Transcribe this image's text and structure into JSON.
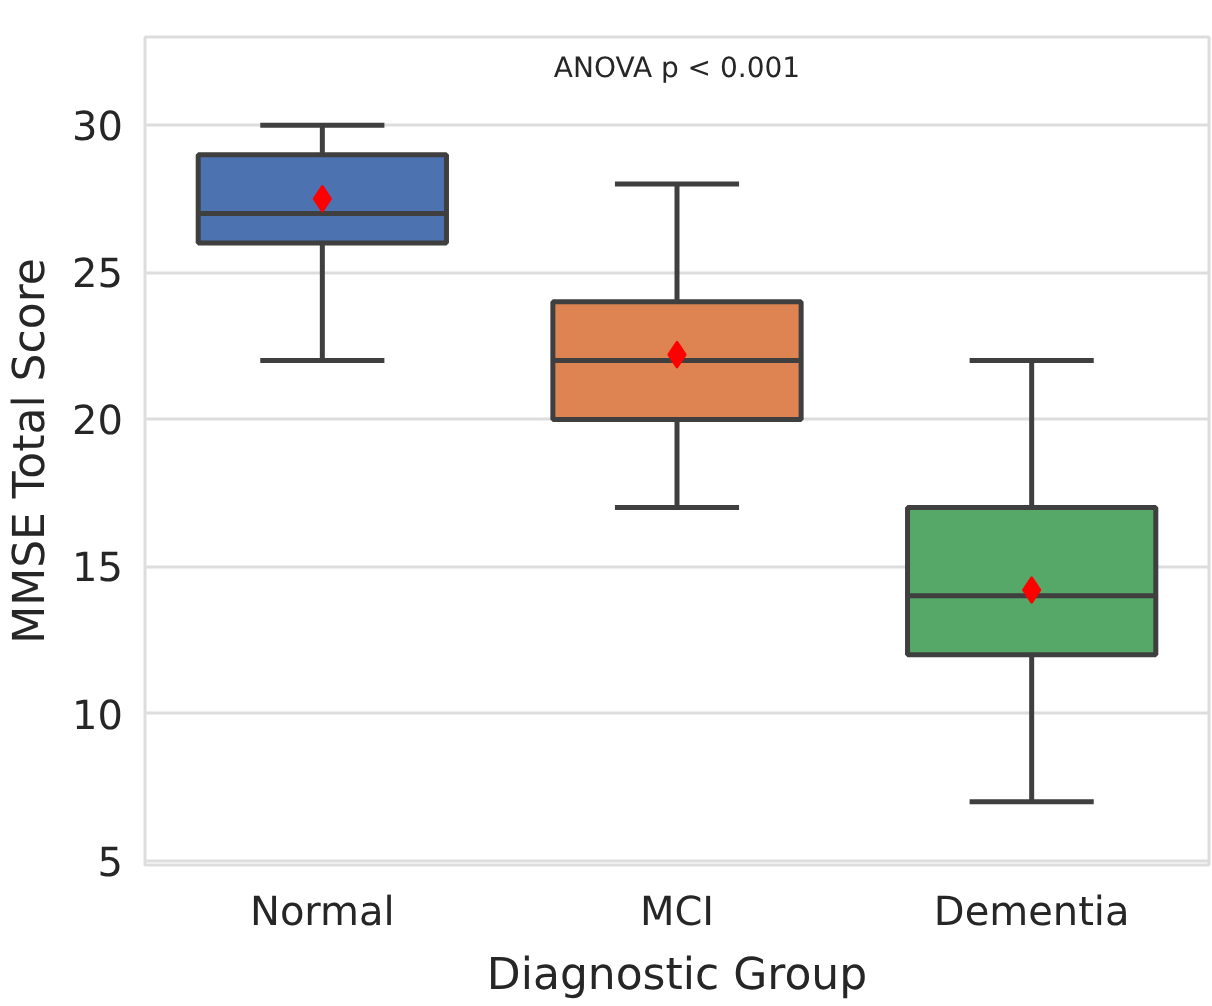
{
  "chart_data": {
    "type": "box",
    "xlabel": "Diagnostic Group",
    "ylabel": "MMSE Total Score",
    "annotations": [
      "ANOVA p < 0.001"
    ],
    "categories": [
      "Normal",
      "MCI",
      "Dementia"
    ],
    "colors": [
      "#4c72b0",
      "#dd8452",
      "#55a868"
    ],
    "boxes": [
      {
        "low": 22,
        "q1": 26,
        "median": 27,
        "q3": 29,
        "high": 30,
        "mean": 27.5
      },
      {
        "low": 17,
        "q1": 20,
        "median": 22,
        "q3": 24,
        "high": 28,
        "mean": 22.2
      },
      {
        "low": 7,
        "q1": 12,
        "median": 14,
        "q3": 17,
        "high": 22,
        "mean": 14.2
      }
    ],
    "ylim": [
      4.85,
      33
    ],
    "yticks": [
      5,
      10,
      15,
      20,
      25,
      30
    ],
    "grid": "y",
    "marker": "diamond"
  }
}
